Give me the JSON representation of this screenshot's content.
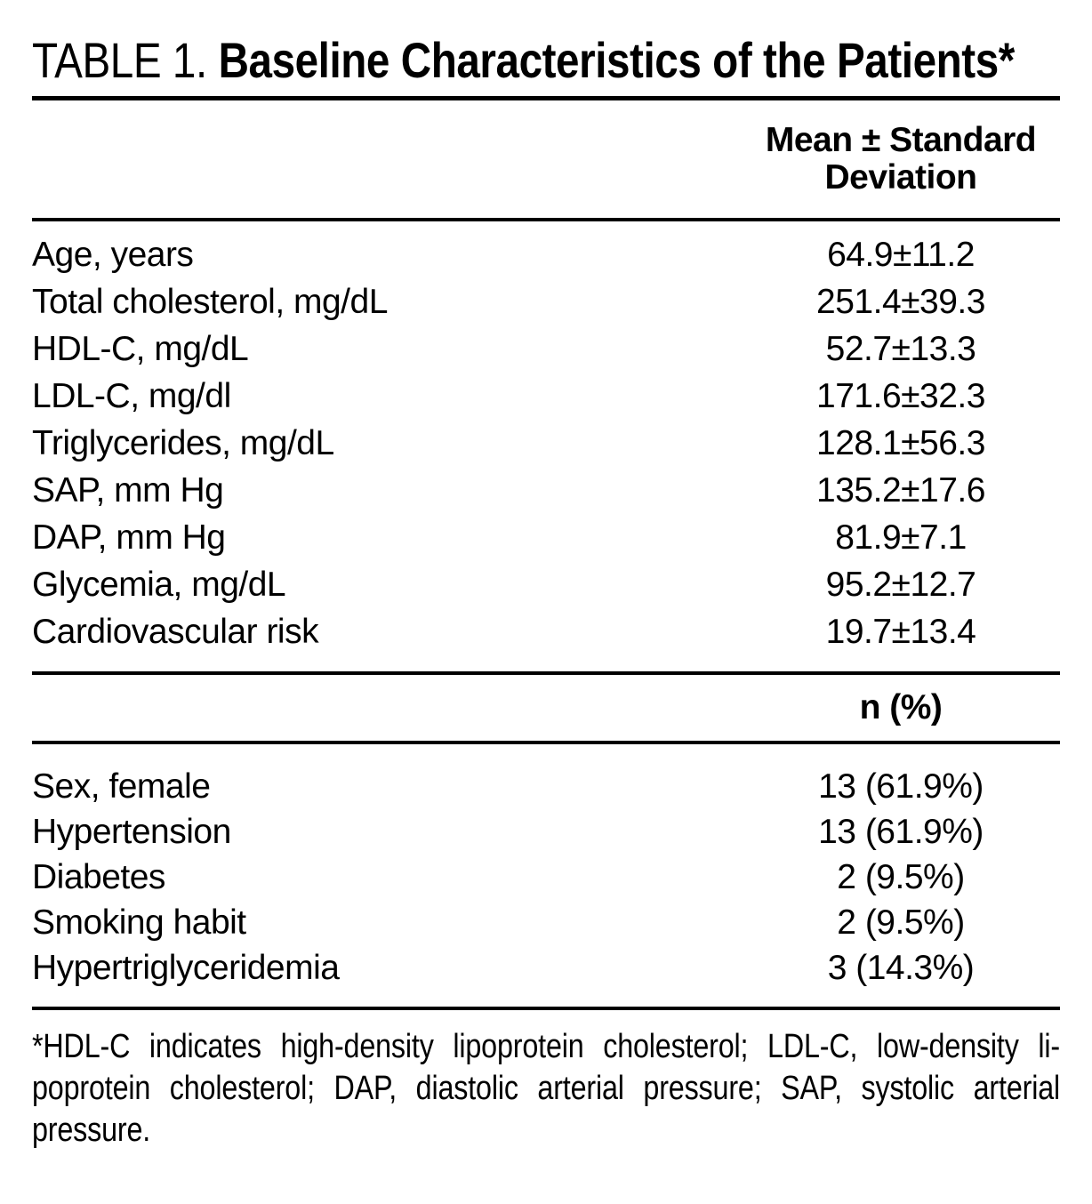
{
  "title": {
    "prefix": "TABLE 1. ",
    "main": "Baseline Characteristics of the Patients*"
  },
  "section1": {
    "header_line1": "Mean ± Standard",
    "header_line2": "Deviation",
    "rows": [
      {
        "label": "Age, years",
        "value": "64.9±11.2"
      },
      {
        "label": "Total cholesterol, mg/dL",
        "value": "251.4±39.3"
      },
      {
        "label": "HDL-C, mg/dL",
        "value": "52.7±13.3"
      },
      {
        "label": "LDL-C, mg/dl",
        "value": "171.6±32.3"
      },
      {
        "label": "Triglycerides, mg/dL",
        "value": "128.1±56.3"
      },
      {
        "label": "SAP, mm Hg",
        "value": "135.2±17.6"
      },
      {
        "label": "DAP, mm Hg",
        "value": "81.9±7.1"
      },
      {
        "label": "Glycemia, mg/dL",
        "value": "95.2±12.7"
      },
      {
        "label": "Cardiovascular risk",
        "value": "19.7±13.4"
      }
    ]
  },
  "section2": {
    "header": "n (%)",
    "rows": [
      {
        "label": "Sex, female",
        "value": "13 (61.9%)"
      },
      {
        "label": "Hypertension",
        "value": "13 (61.9%)"
      },
      {
        "label": "Diabetes",
        "value": "2 (9.5%)"
      },
      {
        "label": "Smoking habit",
        "value": "2 (9.5%)"
      },
      {
        "label": "Hypertriglyceridemia",
        "value": "3 (14.3%)"
      }
    ]
  },
  "footnote": {
    "lines": [
      "*HDL-C indicates high-density lipoprotein cholesterol; LDL-C, low-density li-",
      "poprotein cholesterol; DAP, diastolic arterial pressure; SAP, systolic arterial",
      "pressure."
    ]
  }
}
